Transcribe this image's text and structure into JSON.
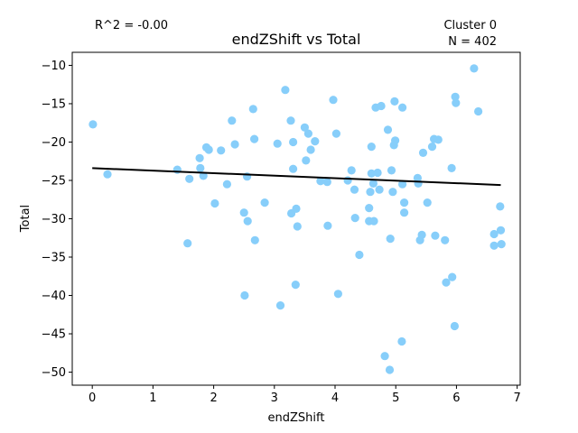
{
  "chart_data": {
    "type": "scatter",
    "title": "endZShift vs Total",
    "xlabel": "endZShift",
    "ylabel": "Total",
    "xlim": [
      -0.33,
      7.05
    ],
    "ylim": [
      -51.7,
      -8.3
    ],
    "xticks": [
      0,
      1,
      2,
      3,
      4,
      5,
      6,
      7
    ],
    "yticks": [
      -50,
      -45,
      -40,
      -35,
      -30,
      -25,
      -20,
      -15,
      -10
    ],
    "xtick_labels": [
      "0",
      "1",
      "2",
      "3",
      "4",
      "5",
      "6",
      "7"
    ],
    "ytick_labels": [
      "−50",
      "−45",
      "−40",
      "−35",
      "−30",
      "−25",
      "−20",
      "−15",
      "−10"
    ],
    "grid": false,
    "point_color": "#87CEFA",
    "line_color": "#000000",
    "annotations": {
      "r2": "R^2 = -0.00",
      "cluster": "Cluster 0",
      "n": "N = 402"
    },
    "regression_line": {
      "x": [
        0,
        6.73
      ],
      "y": [
        -23.4,
        -25.6
      ]
    },
    "points": [
      [
        0.01,
        -17.7
      ],
      [
        0.25,
        -24.2
      ],
      [
        1.4,
        -23.6
      ],
      [
        1.57,
        -33.2
      ],
      [
        1.6,
        -24.8
      ],
      [
        1.77,
        -22.1
      ],
      [
        1.78,
        -23.4
      ],
      [
        1.83,
        -24.4
      ],
      [
        1.88,
        -20.7
      ],
      [
        1.92,
        -21.0
      ],
      [
        2.02,
        -28.0
      ],
      [
        2.12,
        -21.1
      ],
      [
        2.22,
        -25.5
      ],
      [
        2.3,
        -17.2
      ],
      [
        2.35,
        -20.3
      ],
      [
        2.5,
        -29.2
      ],
      [
        2.51,
        -40.0
      ],
      [
        2.55,
        -24.5
      ],
      [
        2.56,
        -30.3
      ],
      [
        2.65,
        -15.7
      ],
      [
        2.67,
        -19.6
      ],
      [
        2.68,
        -32.8
      ],
      [
        2.84,
        -27.9
      ],
      [
        3.05,
        -20.2
      ],
      [
        3.1,
        -41.3
      ],
      [
        3.18,
        -13.2
      ],
      [
        3.27,
        -17.2
      ],
      [
        3.28,
        -29.3
      ],
      [
        3.31,
        -20.0
      ],
      [
        3.31,
        -23.5
      ],
      [
        3.35,
        -38.6
      ],
      [
        3.36,
        -28.7
      ],
      [
        3.38,
        -31.0
      ],
      [
        3.5,
        -18.1
      ],
      [
        3.52,
        -22.4
      ],
      [
        3.56,
        -18.9
      ],
      [
        3.6,
        -21.0
      ],
      [
        3.67,
        -19.9
      ],
      [
        3.76,
        -25.1
      ],
      [
        3.87,
        -25.2
      ],
      [
        3.88,
        -30.9
      ],
      [
        3.97,
        -14.5
      ],
      [
        4.02,
        -18.9
      ],
      [
        4.05,
        -39.8
      ],
      [
        4.21,
        -25.0
      ],
      [
        4.27,
        -23.7
      ],
      [
        4.32,
        -26.2
      ],
      [
        4.33,
        -29.9
      ],
      [
        4.4,
        -34.7
      ],
      [
        4.56,
        -28.6
      ],
      [
        4.56,
        -30.3
      ],
      [
        4.58,
        -26.5
      ],
      [
        4.6,
        -24.1
      ],
      [
        4.6,
        -20.6
      ],
      [
        4.63,
        -25.4
      ],
      [
        4.64,
        -30.3
      ],
      [
        4.67,
        -15.5
      ],
      [
        4.7,
        -24.0
      ],
      [
        4.73,
        -26.2
      ],
      [
        4.76,
        -15.3
      ],
      [
        4.82,
        -47.9
      ],
      [
        4.87,
        -18.4
      ],
      [
        4.9,
        -49.7
      ],
      [
        4.91,
        -32.6
      ],
      [
        4.93,
        -23.7
      ],
      [
        4.95,
        -26.5
      ],
      [
        4.97,
        -20.4
      ],
      [
        4.98,
        -14.7
      ],
      [
        4.99,
        -19.8
      ],
      [
        5.1,
        -46.0
      ],
      [
        5.11,
        -15.5
      ],
      [
        5.11,
        -25.5
      ],
      [
        5.14,
        -27.9
      ],
      [
        5.14,
        -29.2
      ],
      [
        5.36,
        -24.7
      ],
      [
        5.37,
        -25.4
      ],
      [
        5.4,
        -32.8
      ],
      [
        5.43,
        -32.1
      ],
      [
        5.45,
        -21.4
      ],
      [
        5.52,
        -27.9
      ],
      [
        5.6,
        -20.6
      ],
      [
        5.63,
        -19.6
      ],
      [
        5.65,
        -32.2
      ],
      [
        5.7,
        -19.7
      ],
      [
        5.81,
        -32.8
      ],
      [
        5.83,
        -38.3
      ],
      [
        5.92,
        -23.4
      ],
      [
        5.93,
        -37.6
      ],
      [
        5.97,
        -44.0
      ],
      [
        5.98,
        -14.1
      ],
      [
        5.99,
        -14.9
      ],
      [
        6.29,
        -10.4
      ],
      [
        6.36,
        -16.0
      ],
      [
        6.62,
        -32.0
      ],
      [
        6.62,
        -33.5
      ],
      [
        6.72,
        -28.4
      ],
      [
        6.73,
        -31.5
      ],
      [
        6.74,
        -33.3
      ]
    ]
  }
}
